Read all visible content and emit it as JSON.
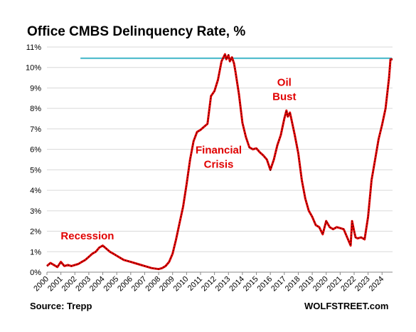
{
  "title": "Office CMBS Delinquency Rate, %",
  "source": "Source: Trepp",
  "brand": "WOLFSTREET.com",
  "chart_data": {
    "type": "line",
    "title": "Office CMBS Delinquency Rate, %",
    "xlabel": "",
    "ylabel": "",
    "xlim": [
      2000.0,
      2024.75
    ],
    "ylim": [
      0,
      11
    ],
    "grid": "horizontal",
    "x_tick_labels": [
      "2000",
      "2001",
      "2002",
      "2003",
      "2004",
      "2005",
      "2006",
      "2007",
      "2008",
      "2009",
      "2010",
      "2011",
      "2012",
      "2013",
      "2014",
      "2015",
      "2016",
      "2017",
      "2018",
      "2019",
      "2020",
      "2021",
      "2022",
      "2023",
      "2024"
    ],
    "y_tick_labels": [
      "0%",
      "1%",
      "2%",
      "3%",
      "4%",
      "5%",
      "6%",
      "7%",
      "8%",
      "9%",
      "10%",
      "11%"
    ],
    "annotations": [
      {
        "text": "Recession",
        "x": 2002.9,
        "y": 1.6
      },
      {
        "text": "Financial",
        "x": 2012.3,
        "y": 5.8
      },
      {
        "text": "Crisis",
        "x": 2012.3,
        "y": 5.1
      },
      {
        "text": "Oil",
        "x": 2017.0,
        "y": 9.1
      },
      {
        "text": "Bust",
        "x": 2017.0,
        "y": 8.4
      }
    ],
    "reference_line": {
      "y": 10.45,
      "x_start": 2002.4,
      "x_end": 2024.7,
      "color": "#3fb6c8"
    },
    "series": [
      {
        "color": "#e10000",
        "x": [
          2000.0,
          2000.25,
          2000.5,
          2000.75,
          2001.0,
          2001.25,
          2001.5,
          2001.75,
          2002.0,
          2002.25,
          2002.5,
          2002.75,
          2003.0,
          2003.25,
          2003.5,
          2003.75,
          2004.0,
          2004.25,
          2004.5,
          2004.75,
          2005.0,
          2005.25,
          2005.5,
          2005.75,
          2006.0,
          2006.5,
          2007.0,
          2007.5,
          2008.0,
          2008.25,
          2008.5,
          2008.75,
          2009.0,
          2009.25,
          2009.5,
          2009.75,
          2010.0,
          2010.25,
          2010.5,
          2010.75,
          2011.0,
          2011.25,
          2011.5,
          2011.75,
          2012.0,
          2012.25,
          2012.5,
          2012.75,
          2012.85,
          2013.0,
          2013.1,
          2013.25,
          2013.4,
          2013.5,
          2013.75,
          2014.0,
          2014.25,
          2014.5,
          2014.75,
          2015.0,
          2015.25,
          2015.5,
          2015.75,
          2016.0,
          2016.25,
          2016.5,
          2016.75,
          2017.0,
          2017.15,
          2017.25,
          2017.4,
          2017.5,
          2017.75,
          2018.0,
          2018.25,
          2018.5,
          2018.75,
          2019.0,
          2019.25,
          2019.5,
          2019.75,
          2020.0,
          2020.25,
          2020.5,
          2020.75,
          2021.0,
          2021.25,
          2021.5,
          2021.75,
          2021.85,
          2022.0,
          2022.1,
          2022.25,
          2022.5,
          2022.75,
          2023.0,
          2023.25,
          2023.5,
          2023.75,
          2024.0,
          2024.25,
          2024.5,
          2024.6,
          2024.75
        ],
        "y": [
          0.3,
          0.45,
          0.35,
          0.25,
          0.5,
          0.3,
          0.35,
          0.3,
          0.35,
          0.4,
          0.5,
          0.6,
          0.75,
          0.9,
          1.0,
          1.2,
          1.3,
          1.15,
          1.0,
          0.9,
          0.8,
          0.7,
          0.6,
          0.55,
          0.5,
          0.4,
          0.3,
          0.2,
          0.15,
          0.2,
          0.3,
          0.5,
          0.9,
          1.6,
          2.4,
          3.2,
          4.3,
          5.5,
          6.4,
          6.85,
          6.95,
          7.1,
          7.25,
          8.6,
          8.85,
          9.4,
          10.3,
          10.65,
          10.4,
          10.6,
          10.3,
          10.5,
          10.2,
          9.8,
          8.7,
          7.3,
          6.6,
          6.1,
          6.0,
          6.05,
          5.85,
          5.7,
          5.5,
          5.0,
          5.5,
          6.2,
          6.7,
          7.5,
          7.9,
          7.6,
          7.8,
          7.5,
          6.7,
          5.8,
          4.5,
          3.6,
          3.0,
          2.7,
          2.3,
          2.2,
          1.85,
          2.5,
          2.2,
          2.1,
          2.2,
          2.15,
          2.1,
          1.7,
          1.3,
          2.5,
          2.0,
          1.7,
          1.65,
          1.7,
          1.6,
          2.7,
          4.5,
          5.5,
          6.5,
          7.2,
          8.0,
          9.5,
          10.4,
          10.4
        ]
      }
    ]
  }
}
